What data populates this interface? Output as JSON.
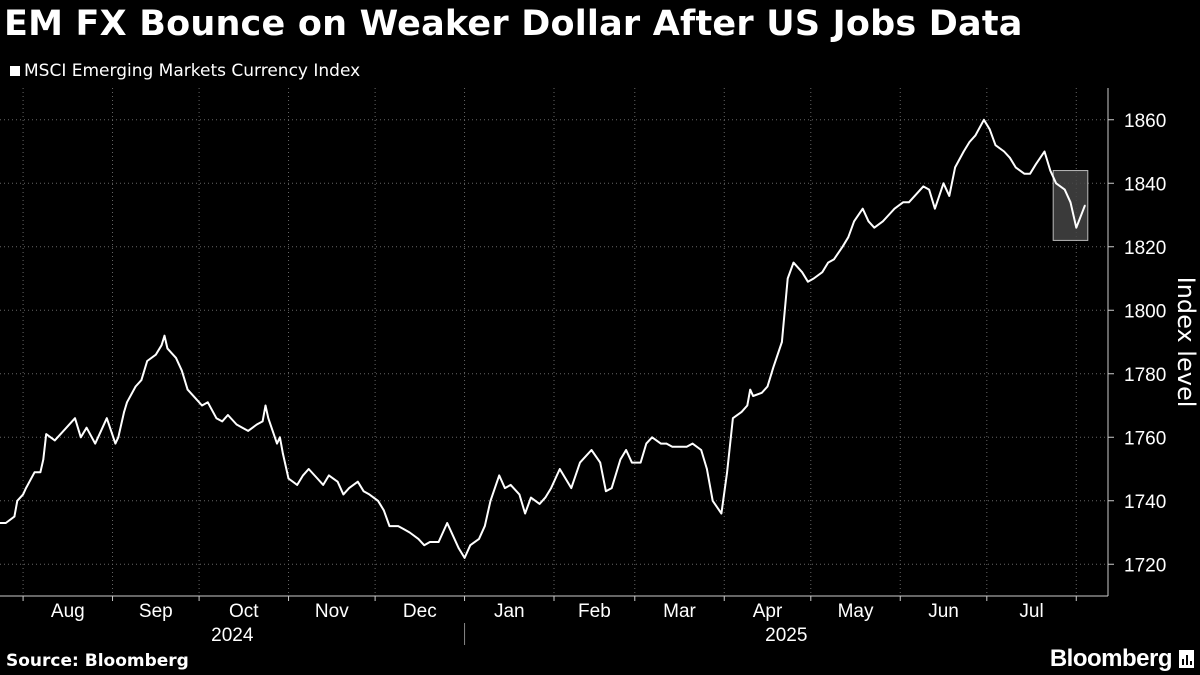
{
  "header": {
    "title": "EM FX Bounce on Weaker Dollar After US Jobs Data"
  },
  "legend": {
    "label": "MSCI Emerging Markets Currency Index"
  },
  "footer": {
    "source": "Source: Bloomberg",
    "brand": "Bloomberg"
  },
  "colors": {
    "background": "#000000",
    "line": "#ffffff",
    "grid": "#666666",
    "highlight": "#777777"
  },
  "chart_data": {
    "type": "line",
    "title": "EM FX Bounce on Weaker Dollar After US Jobs Data",
    "ylabel": "Index level",
    "ylim": [
      1710,
      1870
    ],
    "yticks": [
      1720,
      1740,
      1760,
      1780,
      1800,
      1820,
      1840,
      1860
    ],
    "grid": true,
    "legend_position": "top-left",
    "x_month_labels": [
      "Aug",
      "Sep",
      "Oct",
      "Nov",
      "Dec",
      "Jan",
      "Feb",
      "Mar",
      "Apr",
      "May",
      "Jun",
      "Jul"
    ],
    "x_year_labels": [
      "2024",
      "2025"
    ],
    "series": [
      {
        "name": "MSCI Emerging Markets Currency Index",
        "x": [
          "2024-07-24",
          "2024-07-26",
          "2024-07-29",
          "2024-07-30",
          "2024-08-01",
          "2024-08-02",
          "2024-08-05",
          "2024-08-07",
          "2024-08-08",
          "2024-08-09",
          "2024-08-12",
          "2024-08-14",
          "2024-08-16",
          "2024-08-19",
          "2024-08-21",
          "2024-08-23",
          "2024-08-26",
          "2024-08-28",
          "2024-08-30",
          "2024-09-02",
          "2024-09-03",
          "2024-09-05",
          "2024-09-06",
          "2024-09-09",
          "2024-09-11",
          "2024-09-13",
          "2024-09-16",
          "2024-09-18",
          "2024-09-19",
          "2024-09-20",
          "2024-09-23",
          "2024-09-25",
          "2024-09-26",
          "2024-09-27",
          "2024-09-30",
          "2024-10-02",
          "2024-10-04",
          "2024-10-07",
          "2024-10-09",
          "2024-10-11",
          "2024-10-14",
          "2024-10-16",
          "2024-10-18",
          "2024-10-21",
          "2024-10-23",
          "2024-10-24",
          "2024-10-25",
          "2024-10-28",
          "2024-10-29",
          "2024-10-30",
          "2024-11-01",
          "2024-11-04",
          "2024-11-06",
          "2024-11-08",
          "2024-11-11",
          "2024-11-13",
          "2024-11-15",
          "2024-11-18",
          "2024-11-20",
          "2024-11-22",
          "2024-11-25",
          "2024-11-27",
          "2024-11-29",
          "2024-12-02",
          "2024-12-04",
          "2024-12-06",
          "2024-12-09",
          "2024-12-11",
          "2024-12-13",
          "2024-12-16",
          "2024-12-18",
          "2024-12-20",
          "2024-12-23",
          "2024-12-26",
          "2024-12-30",
          "2025-01-01",
          "2025-01-03",
          "2025-01-06",
          "2025-01-08",
          "2025-01-10",
          "2025-01-13",
          "2025-01-15",
          "2025-01-17",
          "2025-01-20",
          "2025-01-22",
          "2025-01-24",
          "2025-01-27",
          "2025-01-29",
          "2025-01-31",
          "2025-02-03",
          "2025-02-05",
          "2025-02-07",
          "2025-02-10",
          "2025-02-12",
          "2025-02-14",
          "2025-02-17",
          "2025-02-19",
          "2025-02-21",
          "2025-02-24",
          "2025-02-26",
          "2025-02-28",
          "2025-03-03",
          "2025-03-05",
          "2025-03-07",
          "2025-03-10",
          "2025-03-12",
          "2025-03-14",
          "2025-03-17",
          "2025-03-19",
          "2025-03-21",
          "2025-03-24",
          "2025-03-26",
          "2025-03-28",
          "2025-03-31",
          "2025-04-02",
          "2025-04-04",
          "2025-04-07",
          "2025-04-09",
          "2025-04-10",
          "2025-04-11",
          "2025-04-14",
          "2025-04-16",
          "2025-04-18",
          "2025-04-21",
          "2025-04-23",
          "2025-04-25",
          "2025-04-28",
          "2025-04-30",
          "2025-05-02",
          "2025-05-05",
          "2025-05-07",
          "2025-05-09",
          "2025-05-12",
          "2025-05-14",
          "2025-05-16",
          "2025-05-19",
          "2025-05-21",
          "2025-05-23",
          "2025-05-26",
          "2025-05-28",
          "2025-05-30",
          "2025-06-02",
          "2025-06-04",
          "2025-06-06",
          "2025-06-09",
          "2025-06-11",
          "2025-06-13",
          "2025-06-16",
          "2025-06-18",
          "2025-06-20",
          "2025-06-23",
          "2025-06-25",
          "2025-06-27",
          "2025-06-30",
          "2025-07-02",
          "2025-07-04",
          "2025-07-07",
          "2025-07-09",
          "2025-07-11",
          "2025-07-14",
          "2025-07-16",
          "2025-07-18",
          "2025-07-21",
          "2025-07-23",
          "2025-07-25",
          "2025-07-28",
          "2025-07-30",
          "2025-08-01",
          "2025-08-04"
        ],
        "values": [
          1733,
          1733,
          1735,
          1740,
          1742,
          1744,
          1749,
          1749,
          1753,
          1761,
          1759,
          1761,
          1763,
          1766,
          1760,
          1763,
          1758,
          1762,
          1766,
          1758,
          1760,
          1768,
          1771,
          1776,
          1778,
          1784,
          1786,
          1789,
          1792,
          1788,
          1785,
          1781,
          1778,
          1775,
          1772,
          1770,
          1771,
          1766,
          1765,
          1767,
          1764,
          1763,
          1762,
          1764,
          1765,
          1770,
          1766,
          1758,
          1760,
          1755,
          1747,
          1745,
          1748,
          1750,
          1747,
          1745,
          1748,
          1746,
          1742,
          1744,
          1746,
          1743,
          1742,
          1740,
          1737,
          1732,
          1732,
          1731,
          1730,
          1728,
          1726,
          1727,
          1727,
          1733,
          1725,
          1722,
          1726,
          1728,
          1732,
          1740,
          1748,
          1744,
          1745,
          1742,
          1736,
          1741,
          1739,
          1741,
          1744,
          1750,
          1747,
          1744,
          1752,
          1754,
          1756,
          1752,
          1743,
          1744,
          1753,
          1756,
          1752,
          1752,
          1758,
          1760,
          1758,
          1758,
          1757,
          1757,
          1757,
          1758,
          1756,
          1750,
          1740,
          1736,
          1749,
          1766,
          1768,
          1770,
          1775,
          1773,
          1774,
          1776,
          1782,
          1790,
          1810,
          1815,
          1812,
          1809,
          1810,
          1812,
          1815,
          1816,
          1820,
          1823,
          1828,
          1832,
          1828,
          1826,
          1828,
          1830,
          1832,
          1834,
          1834,
          1836,
          1839,
          1838,
          1832,
          1840,
          1836,
          1845,
          1850,
          1853,
          1855,
          1860,
          1857,
          1852,
          1850,
          1848,
          1845,
          1843,
          1843,
          1846,
          1850,
          1844,
          1840,
          1838,
          1834,
          1826,
          1833
        ]
      }
    ],
    "highlight_box": {
      "x_start": "2025-07-24",
      "x_end": "2025-08-05",
      "y_range": [
        1822,
        1844
      ]
    }
  }
}
